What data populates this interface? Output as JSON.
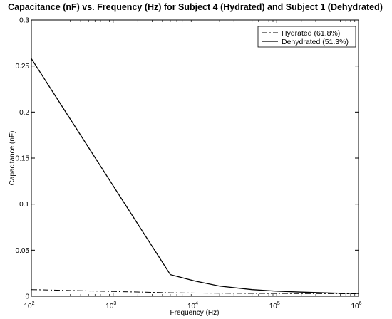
{
  "chart_data": {
    "type": "line",
    "title": "Capacitance (nF) vs. Frequency (Hz) for Subject 4 (Hydrated) and Subject 1 (Dehydrated)",
    "xlabel": "Frequency (Hz)",
    "ylabel": "Capacitance (nF)",
    "xscale": "log",
    "xlim": [
      100,
      1000000
    ],
    "ylim": [
      0,
      0.3
    ],
    "grid": false,
    "legend_position": "top-right",
    "x_ticks": [
      {
        "value": 100,
        "base": "10",
        "exp": "2"
      },
      {
        "value": 1000,
        "base": "10",
        "exp": "3"
      },
      {
        "value": 10000,
        "base": "10",
        "exp": "4"
      },
      {
        "value": 100000,
        "base": "10",
        "exp": "5"
      },
      {
        "value": 1000000,
        "base": "10",
        "exp": "6"
      }
    ],
    "y_ticks": [
      {
        "value": 0,
        "label": "0"
      },
      {
        "value": 0.05,
        "label": "0.05"
      },
      {
        "value": 0.1,
        "label": "0.1"
      },
      {
        "value": 0.15,
        "label": "0.15"
      },
      {
        "value": 0.2,
        "label": "0.2"
      },
      {
        "value": 0.25,
        "label": "0.25"
      },
      {
        "value": 0.3,
        "label": "0.3"
      }
    ],
    "series": [
      {
        "name": "Hydrated (61.8%)",
        "style": "dash-dot",
        "color": "#000000",
        "x": [
          100,
          1000,
          5000,
          10000,
          20000,
          50000,
          100000,
          200000,
          500000,
          1000000
        ],
        "y": [
          0.0072,
          0.0052,
          0.0038,
          0.0035,
          0.0033,
          0.0031,
          0.003,
          0.0029,
          0.0028,
          0.0027
        ]
      },
      {
        "name": "Dehydrated (51.3%)",
        "style": "solid",
        "color": "#000000",
        "x": [
          100,
          5000,
          10000,
          20000,
          50000,
          100000,
          200000,
          500000,
          1000000
        ],
        "y": [
          0.258,
          0.0235,
          0.0165,
          0.011,
          0.0072,
          0.0055,
          0.0045,
          0.0035,
          0.003
        ]
      }
    ]
  }
}
